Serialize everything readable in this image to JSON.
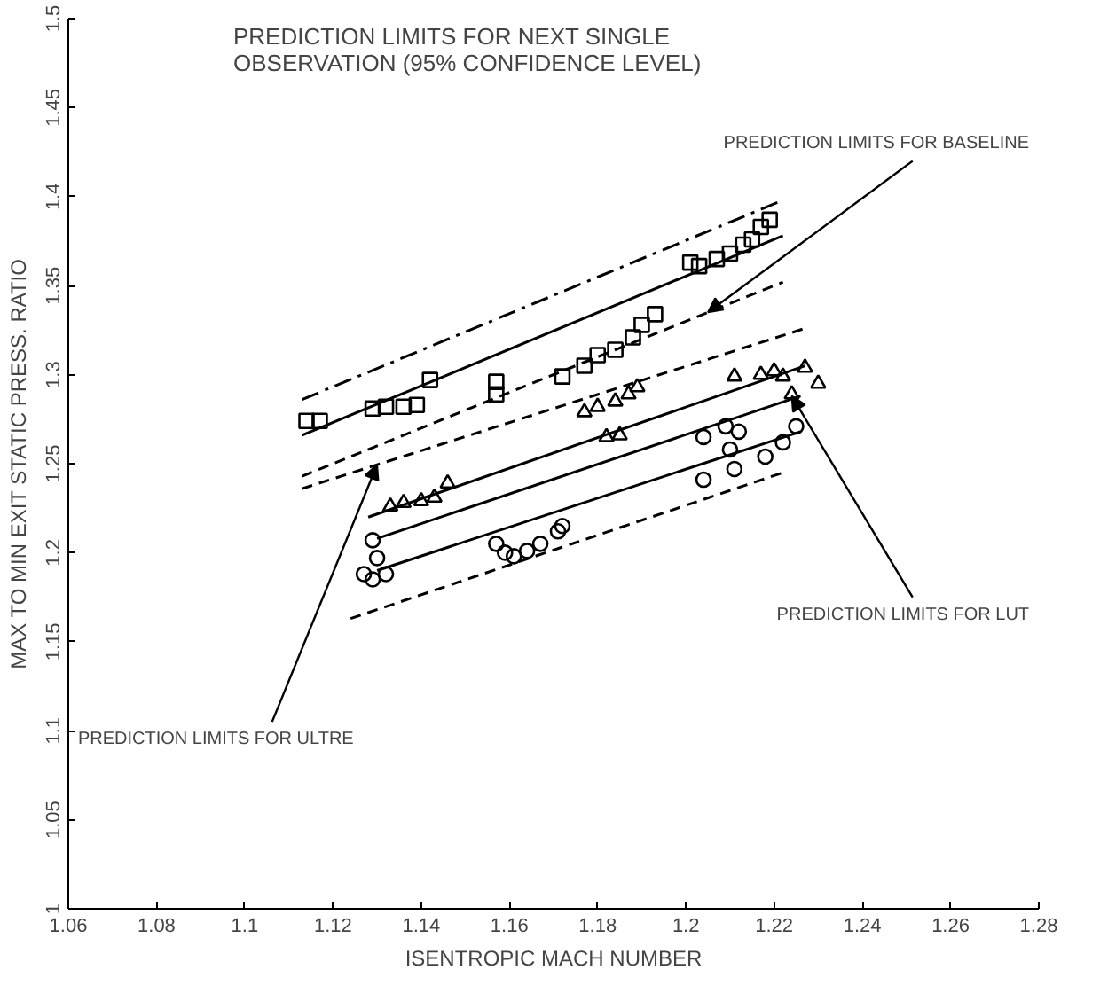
{
  "chart_data": {
    "type": "scatter",
    "title": "PREDICTION LIMITS FOR NEXT SINGLE\nOBSERVATION (95% CONFIDENCE LEVEL)",
    "xlabel": "ISENTROPIC MACH NUMBER",
    "ylabel": "MAX TO MIN EXIT STATIC PRESS. RATIO",
    "xlim": [
      1.06,
      1.28
    ],
    "xticks": [
      1.06,
      1.08,
      1.1,
      1.12,
      1.14,
      1.16,
      1.18,
      1.2,
      1.22,
      1.24,
      1.26,
      1.28
    ],
    "ylim": [
      1,
      1.5
    ],
    "yticks": [
      1,
      1.05,
      1.1,
      1.15,
      1.2,
      1.25,
      1.3,
      1.35,
      1.4,
      1.45,
      1.5
    ],
    "series": [
      {
        "marker": "square",
        "color": "#000000",
        "x": [
          1.114,
          1.117,
          1.129,
          1.132,
          1.136,
          1.139,
          1.142,
          1.157,
          1.157,
          1.172,
          1.177,
          1.18,
          1.184,
          1.188,
          1.19,
          1.193,
          1.201,
          1.203,
          1.207,
          1.21,
          1.213,
          1.215,
          1.217,
          1.219
        ],
        "values": [
          1.274,
          1.274,
          1.281,
          1.282,
          1.282,
          1.283,
          1.297,
          1.289,
          1.296,
          1.299,
          1.305,
          1.311,
          1.314,
          1.321,
          1.328,
          1.334,
          1.363,
          1.361,
          1.365,
          1.368,
          1.373,
          1.376,
          1.383,
          1.387
        ]
      },
      {
        "marker": "triangle",
        "color": "#000000",
        "x": [
          1.133,
          1.136,
          1.14,
          1.143,
          1.146,
          1.177,
          1.18,
          1.184,
          1.187,
          1.189,
          1.182,
          1.185,
          1.211,
          1.217,
          1.22,
          1.222,
          1.227,
          1.23,
          1.224
        ],
        "values": [
          1.226,
          1.228,
          1.229,
          1.231,
          1.239,
          1.279,
          1.282,
          1.285,
          1.289,
          1.293,
          1.265,
          1.266,
          1.299,
          1.3,
          1.302,
          1.299,
          1.304,
          1.295,
          1.289
        ]
      },
      {
        "marker": "circle",
        "color": "#000000",
        "x": [
          1.129,
          1.13,
          1.127,
          1.129,
          1.132,
          1.157,
          1.159,
          1.161,
          1.164,
          1.167,
          1.171,
          1.172,
          1.204,
          1.209,
          1.212,
          1.21,
          1.204,
          1.211,
          1.218,
          1.222,
          1.225
        ],
        "values": [
          1.207,
          1.197,
          1.188,
          1.185,
          1.188,
          1.205,
          1.2,
          1.198,
          1.201,
          1.205,
          1.212,
          1.215,
          1.265,
          1.271,
          1.268,
          1.258,
          1.241,
          1.247,
          1.254,
          1.262,
          1.271
        ]
      },
      {
        "type": "line",
        "line_style": "dashdot",
        "color": "#000000",
        "x": [
          1.113,
          1.222
        ],
        "values": [
          1.286,
          1.398
        ]
      },
      {
        "type": "line",
        "line_style": "solid",
        "color": "#000000",
        "x": [
          1.113,
          1.222
        ],
        "values": [
          1.266,
          1.378
        ]
      },
      {
        "type": "line",
        "line_style": "dashed",
        "color": "#000000",
        "x": [
          1.113,
          1.222
        ],
        "values": [
          1.243,
          1.352
        ]
      },
      {
        "type": "line",
        "line_style": "dashed",
        "color": "#000000",
        "x": [
          1.113,
          1.227
        ],
        "values": [
          1.236,
          1.326
        ]
      },
      {
        "type": "line",
        "line_style": "solid",
        "color": "#000000",
        "x": [
          1.128,
          1.227
        ],
        "values": [
          1.22,
          1.305
        ]
      },
      {
        "type": "line",
        "line_style": "solid",
        "color": "#000000",
        "x": [
          1.13,
          1.226
        ],
        "values": [
          1.208,
          1.288
        ]
      },
      {
        "type": "line",
        "line_style": "solid",
        "color": "#000000",
        "x": [
          1.13,
          1.226
        ],
        "values": [
          1.19,
          1.268
        ]
      },
      {
        "type": "line",
        "line_style": "dashed",
        "color": "#000000",
        "x": [
          1.124,
          1.222
        ],
        "values": [
          1.163,
          1.245
        ]
      }
    ],
    "annotations": [
      {
        "text": "PREDICTION LIMITS FOR BASELINE",
        "x": 1.205,
        "y": 1.335
      },
      {
        "text": "PREDICTION LIMITS FOR LUT",
        "x": 1.224,
        "y": 1.288
      },
      {
        "text": "PREDICTION LIMITS FOR ULTRE",
        "x": 1.13,
        "y": 1.2494
      }
    ]
  }
}
